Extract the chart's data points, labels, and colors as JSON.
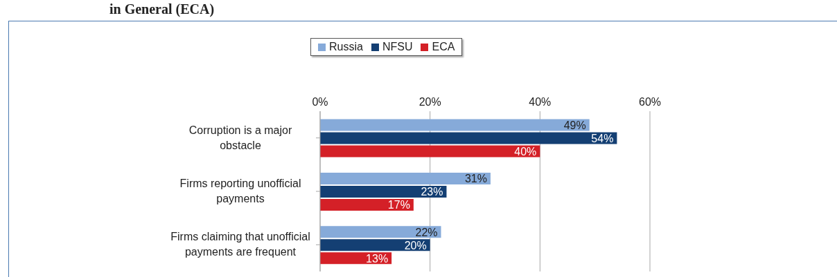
{
  "chart_data": {
    "type": "bar",
    "orientation": "horizontal",
    "title": "in General (ECA)",
    "categories": [
      "Corruption is a major obstacle",
      "Firms reporting unofficial payments",
      "Firms claiming that unofficial payments are frequent"
    ],
    "series": [
      {
        "name": "Russia",
        "color": "#86aad9",
        "values": [
          49,
          31,
          22
        ],
        "value_labels": [
          "49%",
          "31%",
          "22%"
        ]
      },
      {
        "name": "NFSU",
        "color": "#143f73",
        "values": [
          54,
          23,
          20
        ],
        "value_labels": [
          "54%",
          "23%",
          "20%"
        ]
      },
      {
        "name": "ECA",
        "color": "#d42027",
        "values": [
          40,
          17,
          13
        ],
        "value_labels": [
          "40%",
          "17%",
          "13%"
        ]
      }
    ],
    "xlim": [
      0,
      60
    ],
    "xticks": [
      {
        "value": 0,
        "label": "0%"
      },
      {
        "value": 20,
        "label": "20%"
      },
      {
        "value": 40,
        "label": "40%"
      },
      {
        "value": 60,
        "label": "60%"
      }
    ],
    "grid": "x",
    "legend": "top"
  }
}
